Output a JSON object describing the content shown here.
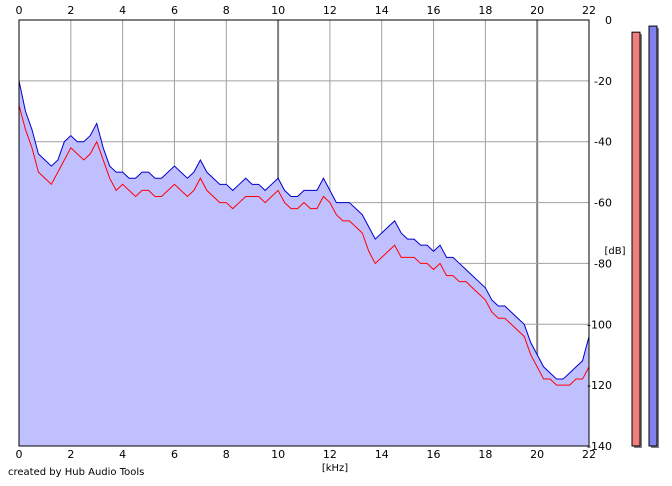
{
  "footer_text": "created by Hub Audio Tools",
  "colors": {
    "background": "#ffffff",
    "fill": "#c0c0ff",
    "left_channel": "#ff0000",
    "right_channel": "#0000cc",
    "grid": "#a0a0a0",
    "grid_major": "#808080",
    "meter_left": "#f08080",
    "meter_right": "#8080ee"
  },
  "chart_data": {
    "type": "line",
    "title": "",
    "xlabel": "[kHz]",
    "ylabel": "[dB]",
    "xlim": [
      0,
      22
    ],
    "ylim": [
      -140,
      0
    ],
    "x_ticks": [
      "0",
      "2",
      "4",
      "6",
      "8",
      "10",
      "12",
      "14",
      "16",
      "18",
      "20",
      "22"
    ],
    "y_ticks": [
      "0",
      "-20",
      "-40",
      "-60",
      "-80",
      "-100",
      "-120",
      "-140"
    ],
    "grid": true,
    "filled_area_under_curve": true,
    "x": [
      0,
      0.25,
      0.5,
      0.75,
      1,
      1.25,
      1.5,
      1.75,
      2,
      2.25,
      2.5,
      2.75,
      3,
      3.25,
      3.5,
      3.75,
      4,
      4.25,
      4.5,
      4.75,
      5,
      5.25,
      5.5,
      5.75,
      6,
      6.25,
      6.5,
      6.75,
      7,
      7.25,
      7.5,
      7.75,
      8,
      8.25,
      8.5,
      8.75,
      9,
      9.25,
      9.5,
      9.75,
      10,
      10.25,
      10.5,
      10.75,
      11,
      11.25,
      11.5,
      11.75,
      12,
      12.25,
      12.5,
      12.75,
      13,
      13.25,
      13.5,
      13.75,
      14,
      14.25,
      14.5,
      14.75,
      15,
      15.25,
      15.5,
      15.75,
      16,
      16.25,
      16.5,
      16.75,
      17,
      17.25,
      17.5,
      17.75,
      18,
      18.25,
      18.5,
      18.75,
      19,
      19.25,
      19.5,
      19.75,
      20,
      20.25,
      20.5,
      20.75,
      21,
      21.25,
      21.5,
      21.75,
      22
    ],
    "series": [
      {
        "color": "#ff0000",
        "values": [
          -28,
          -36,
          -42,
          -50,
          -52,
          -54,
          -50,
          -46,
          -42,
          -44,
          -46,
          -44,
          -40,
          -46,
          -52,
          -56,
          -54,
          -56,
          -58,
          -56,
          -56,
          -58,
          -58,
          -56,
          -54,
          -56,
          -58,
          -56,
          -52,
          -56,
          -58,
          -60,
          -60,
          -62,
          -60,
          -58,
          -58,
          -58,
          -60,
          -58,
          -56,
          -60,
          -62,
          -62,
          -60,
          -62,
          -62,
          -58,
          -60,
          -64,
          -66,
          -66,
          -68,
          -70,
          -76,
          -80,
          -78,
          -76,
          -74,
          -78,
          -78,
          -78,
          -80,
          -80,
          -82,
          -80,
          -84,
          -84,
          -86,
          -86,
          -88,
          -90,
          -92,
          -96,
          -98,
          -98,
          -100,
          -102,
          -104,
          -110,
          -114,
          -118,
          -118,
          -120,
          -120,
          -120,
          -118,
          -118,
          -114
        ]
      },
      {
        "color": "#0000cc",
        "values": [
          -20,
          -30,
          -36,
          -44,
          -46,
          -48,
          -46,
          -40,
          -38,
          -40,
          -40,
          -38,
          -34,
          -42,
          -48,
          -50,
          -50,
          -52,
          -52,
          -50,
          -50,
          -52,
          -52,
          -50,
          -48,
          -50,
          -52,
          -50,
          -46,
          -50,
          -52,
          -54,
          -54,
          -56,
          -54,
          -52,
          -54,
          -54,
          -56,
          -54,
          -52,
          -56,
          -58,
          -58,
          -56,
          -56,
          -56,
          -52,
          -56,
          -60,
          -60,
          -60,
          -62,
          -64,
          -68,
          -72,
          -70,
          -68,
          -66,
          -70,
          -72,
          -72,
          -74,
          -74,
          -76,
          -74,
          -78,
          -78,
          -80,
          -82,
          -84,
          -86,
          -88,
          -92,
          -94,
          -94,
          -96,
          -98,
          -100,
          -106,
          -110,
          -114,
          -116,
          -118,
          -118,
          -116,
          -114,
          -112,
          -104
        ]
      }
    ],
    "level_meters": {
      "left_level_db": -4,
      "right_level_db": -2
    }
  }
}
